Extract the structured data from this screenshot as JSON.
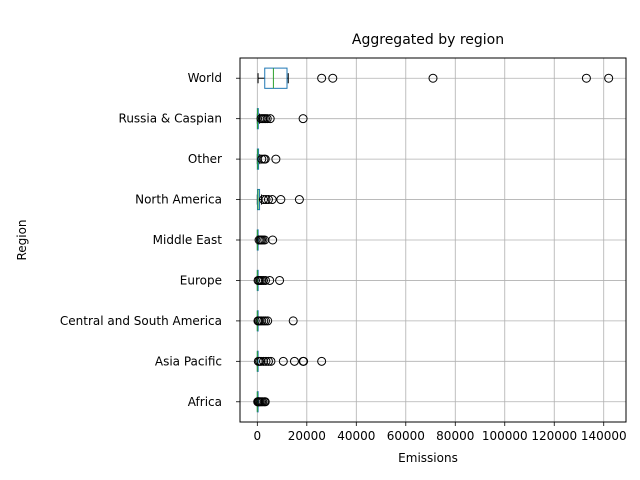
{
  "chart_data": {
    "type": "boxplot",
    "orientation": "horizontal",
    "title": "Aggregated by region",
    "xlabel": "Emissions",
    "ylabel": "Region",
    "xlim": [
      -7000,
      149000
    ],
    "xticks": [
      0,
      20000,
      40000,
      60000,
      80000,
      100000,
      120000,
      140000
    ],
    "xtick_labels": [
      "0",
      "20000",
      "40000",
      "60000",
      "80000",
      "100000",
      "120000",
      "140000"
    ],
    "grid": true,
    "categories": [
      "Africa",
      "Asia Pacific",
      "Central and South America",
      "Europe",
      "Middle East",
      "North America",
      "Other",
      "Russia & Caspian",
      "World"
    ],
    "boxes": [
      {
        "category": "Africa",
        "whislo": 0,
        "q1": 0,
        "med": 5,
        "q3": 30,
        "whishi": 60,
        "fliers": [
          150,
          300,
          500,
          800,
          1200,
          1700,
          2200,
          2800,
          3200
        ]
      },
      {
        "category": "Asia Pacific",
        "whislo": 0,
        "q1": 0,
        "med": 10,
        "q3": 60,
        "whishi": 150,
        "fliers": [
          400,
          900,
          1500,
          2500,
          3500,
          4500,
          5500,
          10500,
          15000,
          18500,
          18700,
          26000
        ]
      },
      {
        "category": "Central and South America",
        "whislo": 0,
        "q1": 0,
        "med": 5,
        "q3": 40,
        "whishi": 90,
        "fliers": [
          250,
          600,
          1100,
          1800,
          2600,
          3300,
          4200,
          14500
        ]
      },
      {
        "category": "Europe",
        "whislo": 0,
        "q1": 0,
        "med": 10,
        "q3": 60,
        "whishi": 150,
        "fliers": [
          300,
          700,
          1200,
          1800,
          2500,
          3300,
          5000,
          9000
        ]
      },
      {
        "category": "Middle East",
        "whislo": 0,
        "q1": 0,
        "med": 20,
        "q3": 150,
        "whishi": 350,
        "fliers": [
          700,
          1200,
          1700,
          2300,
          3000,
          6200
        ]
      },
      {
        "category": "North America",
        "whislo": 0,
        "q1": 80,
        "med": 300,
        "q3": 900,
        "whishi": 1700,
        "fliers": [
          2500,
          3500,
          4500,
          6000,
          9500,
          17000
        ]
      },
      {
        "category": "Other",
        "whislo": 0,
        "q1": 20,
        "med": 150,
        "q3": 500,
        "whishi": 1000,
        "fliers": [
          1800,
          2700,
          3200,
          7500
        ]
      },
      {
        "category": "Russia & Caspian",
        "whislo": 0,
        "q1": 10,
        "med": 100,
        "q3": 400,
        "whishi": 900,
        "fliers": [
          1500,
          2100,
          2700,
          3300,
          4000,
          5200,
          18500
        ]
      },
      {
        "category": "World",
        "whislo": 300,
        "q1": 3000,
        "med": 6500,
        "q3": 12000,
        "whishi": 12500,
        "fliers": [
          26000,
          30500,
          71000,
          133000,
          142000
        ]
      }
    ],
    "colors": {
      "box": "#1f77b4",
      "median": "#2ca02c",
      "whisker": "#000000",
      "flier": "#000000",
      "grid": "#b0b0b0",
      "axes": "#000000"
    }
  }
}
